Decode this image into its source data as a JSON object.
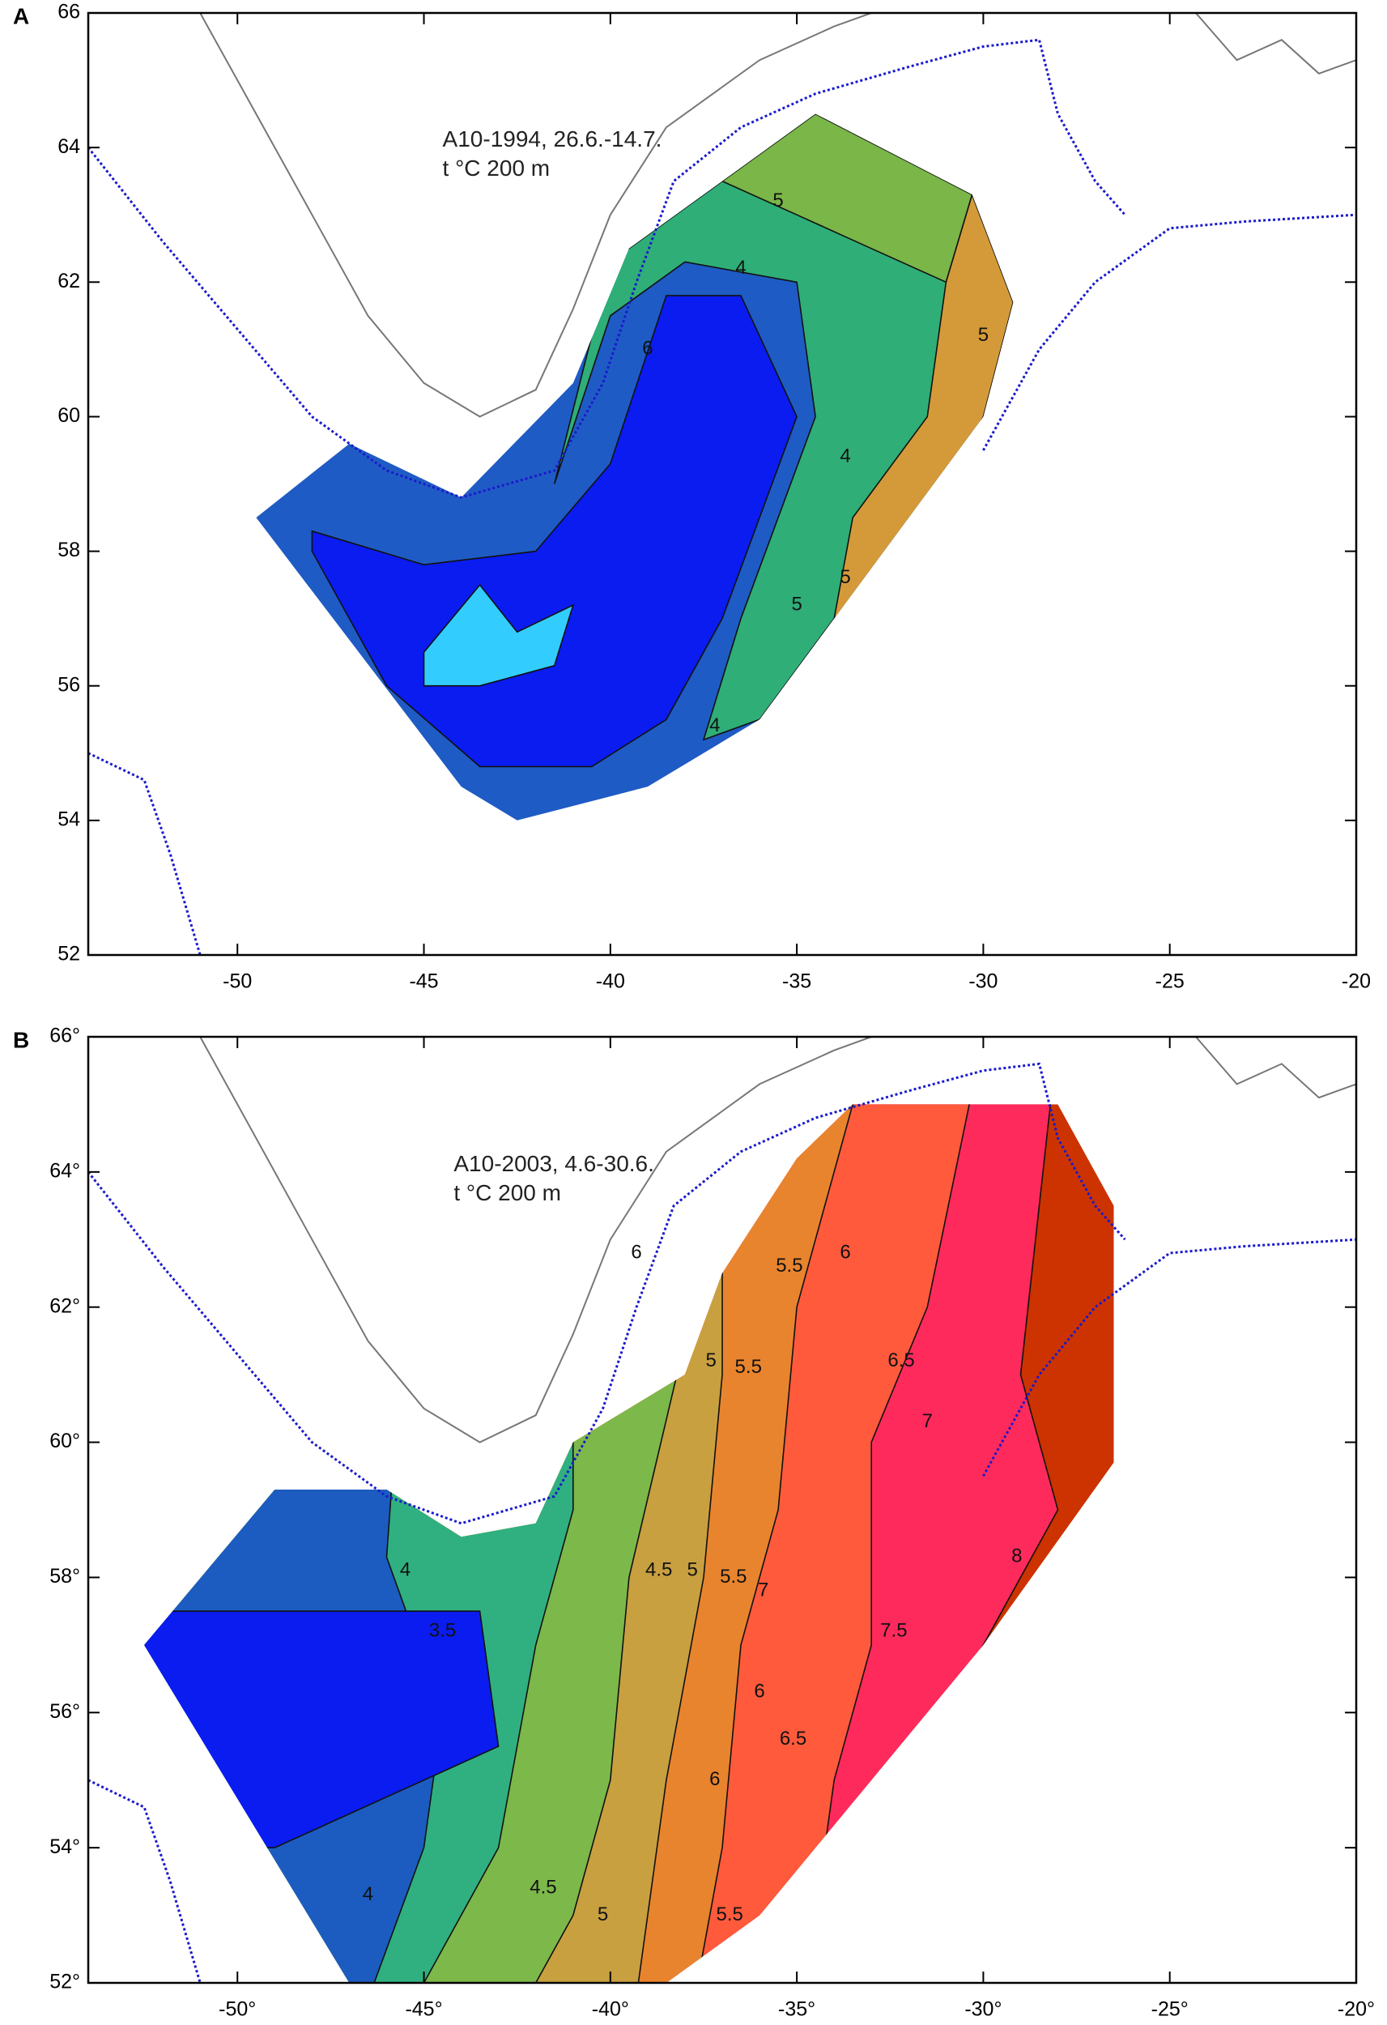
{
  "panels": [
    {
      "label": "A",
      "annotation": [
        "A10-1994, 26.6.-14.7.",
        "t °C 200 m"
      ],
      "xlim": [
        -54,
        -20
      ],
      "ylim": [
        52,
        66
      ],
      "xticks": [
        -50,
        -45,
        -40,
        -35,
        -30,
        -25,
        -20
      ],
      "yticks": [
        52,
        54,
        56,
        58,
        60,
        62,
        64,
        66
      ],
      "contour_labels": [
        5,
        4,
        5,
        6,
        4,
        5,
        4,
        5
      ]
    },
    {
      "label": "B",
      "annotation": [
        "A10-2003, 4.6-30.6.",
        "t °C 200 m"
      ],
      "xlim": [
        -54,
        -20
      ],
      "ylim": [
        52,
        66
      ],
      "xticks": [
        {
          "value": -50,
          "label": "-50°"
        },
        {
          "value": -45,
          "label": "-45°"
        },
        {
          "value": -40,
          "label": "-40°"
        },
        {
          "value": -35,
          "label": "-35°"
        },
        {
          "value": -30,
          "label": "-30°"
        },
        {
          "value": -25,
          "label": "-25°"
        },
        {
          "value": -20,
          "label": "-20°"
        }
      ],
      "yticks": [
        {
          "value": 52,
          "label": "52°"
        },
        {
          "value": 54,
          "label": "54°"
        },
        {
          "value": 56,
          "label": "56°"
        },
        {
          "value": 58,
          "label": "58°"
        },
        {
          "value": 60,
          "label": "60°"
        },
        {
          "value": 62,
          "label": "62°"
        },
        {
          "value": 64,
          "label": "64°"
        },
        {
          "value": 66,
          "label": "66°"
        }
      ],
      "contour_labels": [
        6,
        5.5,
        6,
        5,
        5.5,
        6.5,
        7,
        4,
        3.5,
        4.5,
        5,
        5.5,
        7,
        6,
        6.5,
        6,
        5.5,
        4.5,
        5,
        4,
        8,
        7.5
      ]
    }
  ]
}
